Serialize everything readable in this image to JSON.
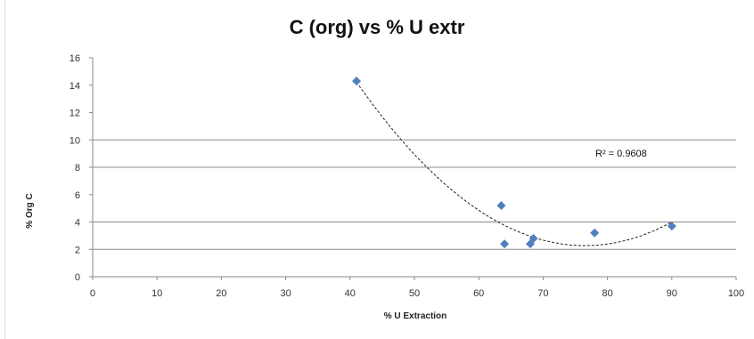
{
  "chart_data": {
    "type": "scatter",
    "title": "C (org) vs % U extr",
    "xlabel": "% U Extraction",
    "ylabel": "% Org C",
    "xlim": [
      0,
      100
    ],
    "ylim": [
      0,
      16
    ],
    "x_ticks": [
      0,
      10,
      20,
      30,
      40,
      50,
      60,
      70,
      80,
      90,
      100
    ],
    "y_ticks": [
      0,
      2,
      4,
      6,
      8,
      10,
      12,
      14,
      16
    ],
    "gridlines": [
      2,
      4,
      8,
      10
    ],
    "marker_color": "#4f81bd",
    "trendline": {
      "type": "polynomial",
      "r_squared_label": "R² = 0.9608"
    },
    "series": [
      {
        "x": [
          41,
          63.5,
          64,
          68,
          68.5,
          78,
          90
        ],
        "y": [
          14.3,
          5.2,
          2.4,
          2.4,
          2.8,
          3.2,
          3.7
        ]
      }
    ]
  }
}
